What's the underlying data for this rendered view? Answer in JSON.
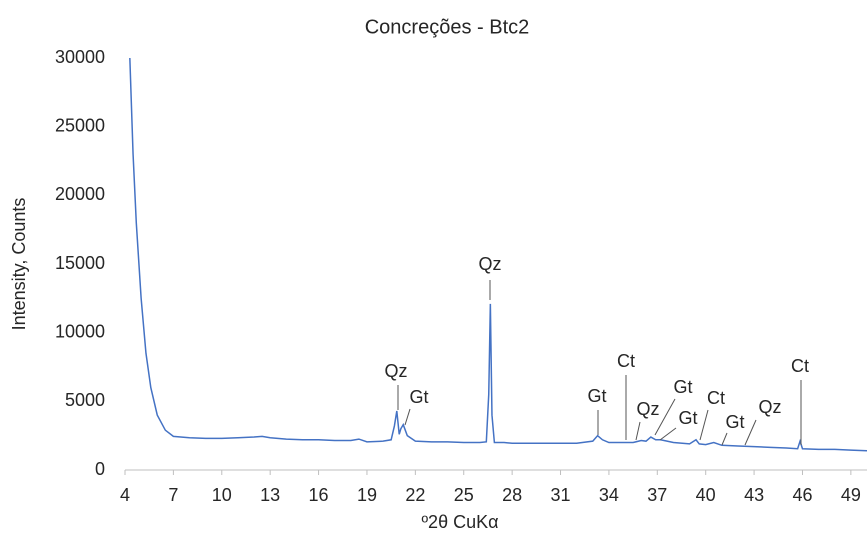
{
  "chart_data": {
    "type": "line",
    "title": "Concreções - Btc2",
    "x_label": "º2θ CuKα",
    "y_label": "Intensity, Counts",
    "x": [
      4.3,
      4.5,
      4.7,
      5,
      5.3,
      5.6,
      6,
      6.5,
      7,
      8,
      9,
      10,
      11,
      12,
      12.5,
      13,
      14,
      15,
      16,
      17,
      18,
      18.5,
      19,
      20,
      20.5,
      20.7,
      20.85,
      21,
      21.1,
      21.25,
      21.5,
      22,
      23,
      24,
      25,
      26,
      26.4,
      26.55,
      26.65,
      26.75,
      26.9,
      27.5,
      28,
      29,
      30,
      31,
      32,
      33,
      33.3,
      33.6,
      34,
      35,
      35.5,
      36,
      36.3,
      36.6,
      36.9,
      37.2,
      38,
      39,
      39.4,
      39.6,
      40,
      40.5,
      41,
      42,
      43,
      44,
      45,
      45.7,
      45.85,
      46,
      47,
      48,
      49,
      50
    ],
    "series": [
      {
        "name": "Btc2",
        "color": "#4472c4",
        "values": [
          30000,
          23000,
          18000,
          12500,
          8500,
          6000,
          4000,
          2900,
          2450,
          2350,
          2300,
          2300,
          2350,
          2400,
          2450,
          2350,
          2250,
          2200,
          2200,
          2150,
          2150,
          2250,
          2050,
          2100,
          2200,
          3200,
          4300,
          2600,
          3000,
          3300,
          2500,
          2100,
          2050,
          2050,
          2000,
          2000,
          2050,
          5500,
          12100,
          4000,
          2000,
          2000,
          1950,
          1950,
          1950,
          1950,
          1950,
          2100,
          2500,
          2200,
          2000,
          2000,
          2000,
          2150,
          2100,
          2400,
          2200,
          2200,
          2000,
          1900,
          2200,
          1900,
          1850,
          2000,
          1800,
          1750,
          1700,
          1650,
          1600,
          1550,
          2100,
          1550,
          1500,
          1500,
          1450,
          1400
        ]
      }
    ],
    "xlim": [
      4,
      50
    ],
    "xticks": [
      4,
      7,
      10,
      13,
      16,
      19,
      22,
      25,
      28,
      31,
      34,
      37,
      40,
      43,
      46,
      49
    ],
    "ylim": [
      0,
      30000
    ],
    "yticks": [
      0,
      5000,
      10000,
      15000,
      20000,
      25000,
      30000
    ],
    "annotations": [
      "Qz",
      "Qz",
      "Gt",
      "Gt",
      "Ct",
      "Qz",
      "Gt",
      "Gt",
      "Ct",
      "Gt",
      "Qz",
      "Ct"
    ]
  }
}
